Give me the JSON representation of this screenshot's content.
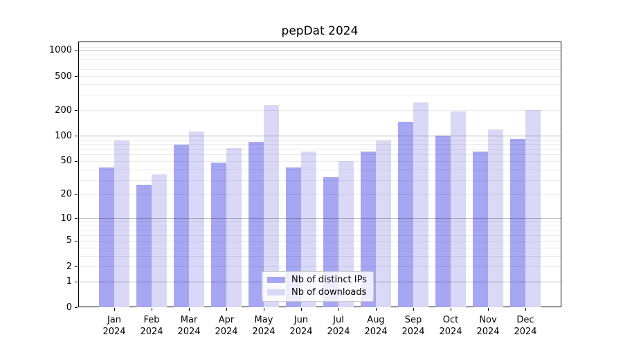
{
  "window": {
    "title": "pepDat 2024"
  },
  "chart_data": {
    "type": "bar",
    "title": "pepDat 2024",
    "xlabel": "",
    "ylabel": "",
    "categories": [
      "Jan 2024",
      "Feb 2024",
      "Mar 2024",
      "Apr 2024",
      "May 2024",
      "Jun 2024",
      "Jul 2024",
      "Aug 2024",
      "Sep 2024",
      "Oct 2024",
      "Nov 2024",
      "Dec 2024"
    ],
    "series": [
      {
        "name": "Nb of distinct IPs",
        "color": "#a6a6f2",
        "values": [
          42,
          26,
          78,
          48,
          84,
          42,
          32,
          65,
          145,
          100,
          65,
          92
        ]
      },
      {
        "name": "Nb of downloads",
        "color": "#d9d9f7",
        "values": [
          88,
          35,
          113,
          72,
          230,
          65,
          50,
          88,
          248,
          194,
          118,
          200
        ]
      }
    ],
    "yscale": "log1p",
    "ylim": [
      0,
      1270
    ],
    "ytick_labels": [
      "0",
      "1",
      "2",
      "5",
      "10",
      "20",
      "50",
      "100",
      "200",
      "500",
      "1000"
    ],
    "ytick_values": [
      0,
      1,
      2,
      5,
      10,
      20,
      50,
      100,
      200,
      500,
      1000
    ],
    "minor_grid_values": [
      2,
      3,
      4,
      5,
      6,
      7,
      8,
      9,
      20,
      30,
      40,
      50,
      60,
      70,
      80,
      90,
      200,
      300,
      400,
      500,
      600,
      700,
      800,
      900,
      1100,
      1200
    ],
    "major_grid_values": [
      1,
      10,
      100,
      1000
    ],
    "grid": true,
    "legend_position": "lower center",
    "colors": {
      "bar_dark": "#a6a6f2",
      "bar_light": "#d9d9f7",
      "major_grid": "#bfbfbf",
      "minor_grid": "#ebebeb",
      "axis": "#000000",
      "legend_border": "#cccccc"
    }
  }
}
